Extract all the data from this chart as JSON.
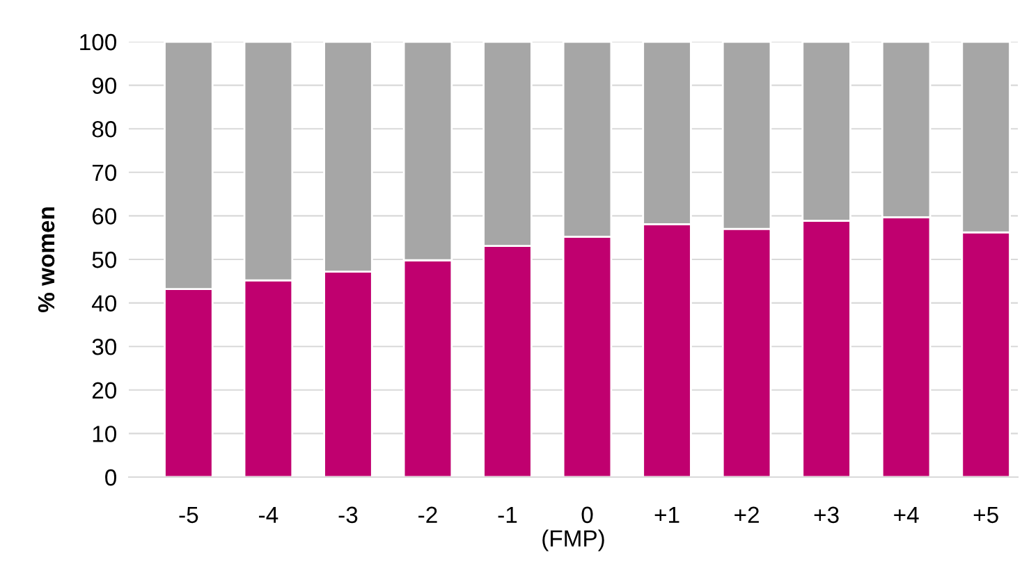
{
  "chart_data": {
    "type": "bar",
    "stacked": true,
    "xlabel": "(FMP)",
    "ylabel": "% women",
    "categories": [
      "-5",
      "-4",
      "-3",
      "-2",
      "-1",
      "0",
      "+1",
      "+2",
      "+3",
      "+4",
      "+5"
    ],
    "series": [
      {
        "color": "#c0006f",
        "values": [
          43.2,
          45.2,
          47.2,
          49.8,
          53.1,
          55.2,
          58.1,
          57.0,
          58.9,
          59.7,
          56.2
        ]
      },
      {
        "color": "#a6a6a6",
        "values": [
          56.8,
          54.8,
          52.8,
          50.2,
          46.9,
          44.8,
          41.9,
          43.0,
          41.1,
          40.3,
          43.8
        ]
      }
    ],
    "ylim": [
      0,
      100
    ],
    "yticks": [
      0,
      10,
      20,
      30,
      40,
      50,
      60,
      70,
      80,
      90,
      100
    ],
    "grid": "y",
    "legend": false
  }
}
